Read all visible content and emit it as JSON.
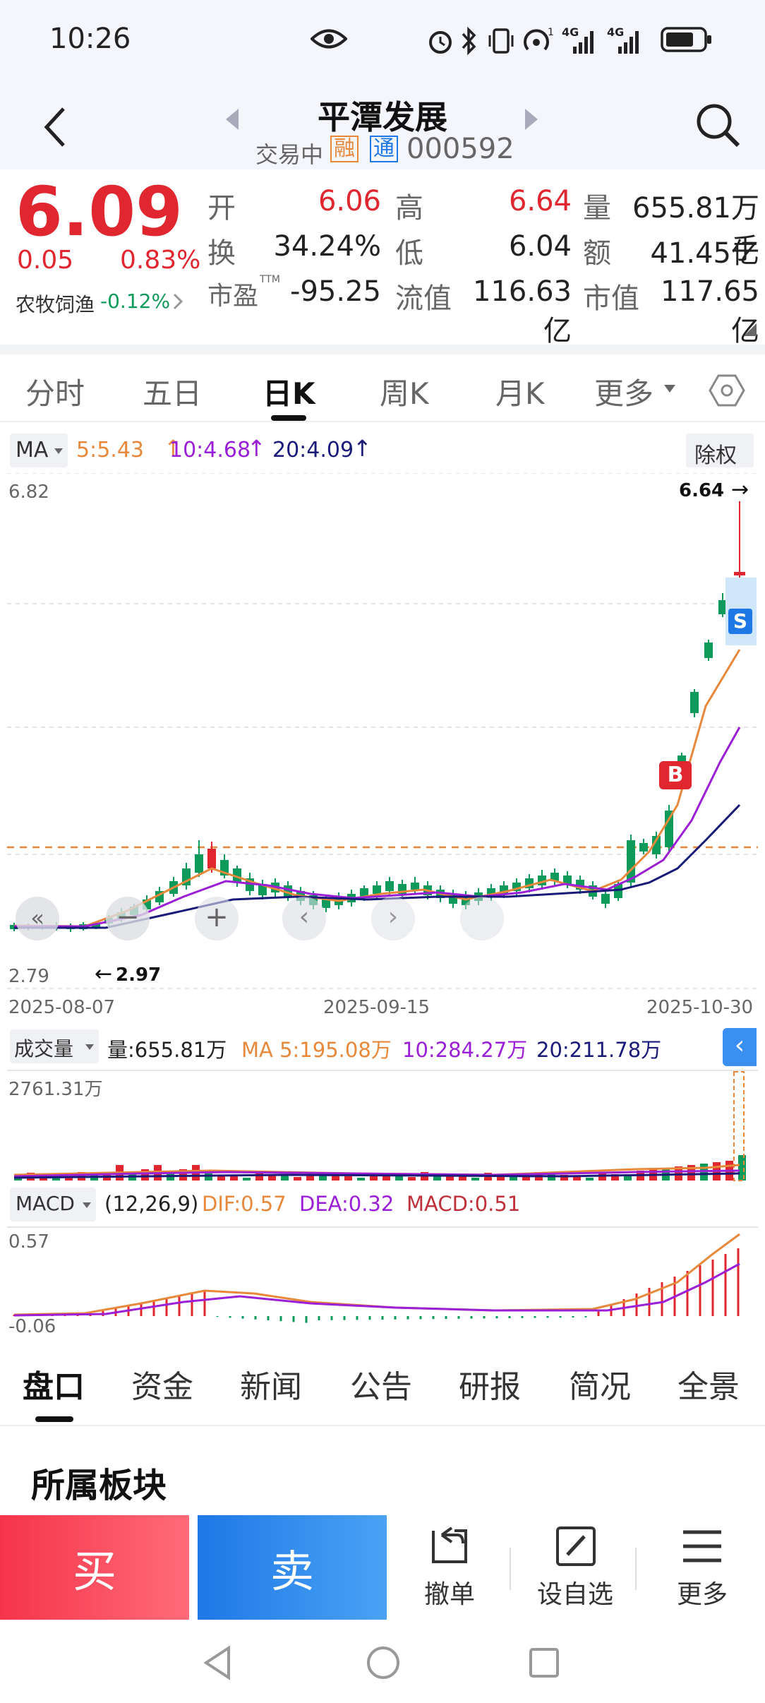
{
  "status_bar": {
    "time": "10:26",
    "net1": "4G",
    "net2": "4G"
  },
  "header": {
    "title": "平潭发展",
    "trade_status": "交易中",
    "badge_rong": "融",
    "badge_tong": "通",
    "code": "000592"
  },
  "quote": {
    "price": "6.09",
    "change": "0.05",
    "change_pct": "0.83%",
    "sector_name": "农牧饲渔",
    "sector_change": "-0.12%",
    "open_label": "开",
    "open": "6.06",
    "high_label": "高",
    "high": "6.64",
    "volume_label": "量",
    "volume": "655.81万手",
    "turnover_label": "换",
    "turnover": "34.24%",
    "low_label": "低",
    "low": "6.04",
    "amount_label": "额",
    "amount": "41.45亿",
    "pe_label": "市盈",
    "pe_sup": "TTM",
    "pe": "-95.25",
    "float_cap_label": "流值",
    "float_cap": "116.63亿",
    "mkt_cap_label": "市值",
    "mkt_cap": "117.65亿"
  },
  "ktabs": [
    {
      "label": "分时"
    },
    {
      "label": "五日"
    },
    {
      "label": "日K"
    },
    {
      "label": "周K"
    },
    {
      "label": "月K"
    },
    {
      "label": "更多"
    }
  ],
  "ma_bar": {
    "selector": "MA",
    "ma5": "5:5.43",
    "ma10": "10:4.68",
    "ma20": "20:4.09",
    "right_btn": "除权"
  },
  "kline": {
    "max_label": "6.82",
    "min_label": "2.79",
    "high_mark": "6.64",
    "low_mark": "2.97",
    "date_start": "2025-08-07",
    "date_mid": "2025-09-15",
    "date_end": "2025-10-30",
    "buy_mark": "B",
    "sell_mark": "S"
  },
  "vol_bar": {
    "selector": "成交量",
    "vol": "量:655.81万",
    "ma5": "MA 5:195.08万",
    "ma10": "10:284.27万",
    "ma20": "20:211.78万",
    "max_label": "2761.31万"
  },
  "macd_bar": {
    "selector": "MACD",
    "params": "(12,26,9)",
    "dif": "DIF:0.57",
    "dea": "DEA:0.32",
    "macd": "MACD:0.51",
    "max_label": "0.57",
    "min_label": "-0.06"
  },
  "btabs": [
    {
      "label": "盘口"
    },
    {
      "label": "资金"
    },
    {
      "label": "新闻"
    },
    {
      "label": "公告"
    },
    {
      "label": "研报"
    },
    {
      "label": "简况"
    },
    {
      "label": "全景"
    }
  ],
  "section_title": "所属板块",
  "actions": {
    "buy": "买",
    "sell": "卖",
    "cancel": "撤单",
    "watch": "设自选",
    "more": "更多"
  },
  "colors": {
    "up": "#e0262f",
    "down": "#0e9a5a",
    "ma5": "#e8883a",
    "ma10": "#9b1fd6",
    "ma20": "#1a1a7a",
    "accent": "#1e78e6"
  }
}
